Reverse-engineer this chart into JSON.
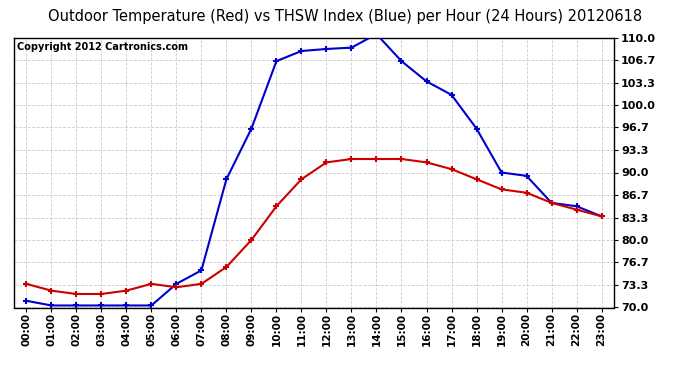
{
  "title": "Outdoor Temperature (Red) vs THSW Index (Blue) per Hour (24 Hours) 20120618",
  "copyright": "Copyright 2012 Cartronics.com",
  "hours": [
    "00:00",
    "01:00",
    "02:00",
    "03:00",
    "04:00",
    "05:00",
    "06:00",
    "07:00",
    "08:00",
    "09:00",
    "10:00",
    "11:00",
    "12:00",
    "13:00",
    "14:00",
    "15:00",
    "16:00",
    "17:00",
    "18:00",
    "19:00",
    "20:00",
    "21:00",
    "22:00",
    "23:00"
  ],
  "red_temp": [
    73.5,
    72.5,
    72.0,
    72.0,
    72.5,
    73.5,
    73.0,
    73.5,
    76.0,
    80.0,
    85.0,
    89.0,
    91.5,
    92.0,
    92.0,
    92.0,
    91.5,
    90.5,
    89.0,
    87.5,
    87.0,
    85.5,
    84.5,
    83.5
  ],
  "blue_thsw": [
    71.0,
    70.3,
    70.3,
    70.3,
    70.3,
    70.3,
    73.5,
    75.5,
    89.0,
    96.5,
    106.5,
    108.0,
    108.3,
    108.5,
    110.5,
    106.5,
    103.5,
    101.5,
    96.5,
    90.0,
    89.5,
    85.5,
    85.0,
    83.5
  ],
  "ylim": [
    70.0,
    110.0
  ],
  "yticks": [
    70.0,
    73.3,
    76.7,
    80.0,
    83.3,
    86.7,
    90.0,
    93.3,
    96.7,
    100.0,
    103.3,
    106.7,
    110.0
  ],
  "ytick_labels": [
    "70.0",
    "73.3",
    "76.7",
    "80.0",
    "83.3",
    "86.7",
    "90.0",
    "93.3",
    "96.7",
    "100.0",
    "103.3",
    "106.7",
    "110.0"
  ],
  "bg_color": "#ffffff",
  "plot_bg_color": "#ffffff",
  "grid_color": "#cccccc",
  "red_color": "#cc0000",
  "blue_color": "#0000cc",
  "title_fontsize": 10.5,
  "copyright_fontsize": 7
}
